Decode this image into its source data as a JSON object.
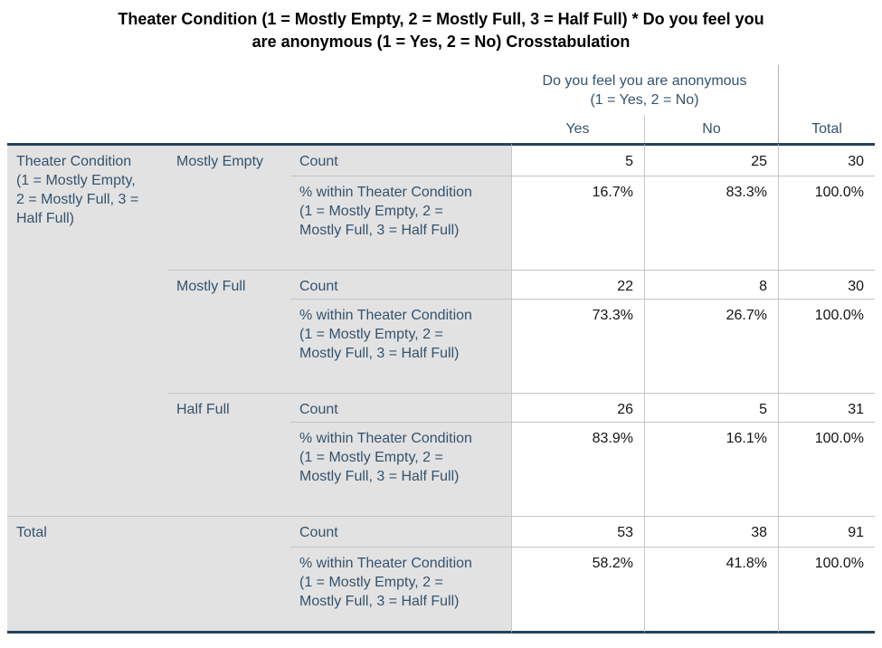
{
  "title": {
    "line1": "Theater Condition (1 = Mostly Empty, 2 = Mostly Full, 3 = Half Full) * Do you feel you",
    "line2": "are anonymous (1 = Yes, 2 = No) Crosstabulation"
  },
  "table": {
    "column_group_header": "Do you feel you are anonymous (1 = Yes, 2 = No)",
    "column_headers": {
      "yes": "Yes",
      "no": "No",
      "total": "Total"
    },
    "row_variable_label": "Theater Condition (1 = Mostly Empty, 2 = Mostly Full, 3 = Half Full)",
    "stat_labels": {
      "count": "Count",
      "pct_within": "% within Theater Condition (1 = Mostly Empty, 2 = Mostly Full, 3 = Half Full)"
    },
    "rows": [
      {
        "category": "Mostly Empty",
        "count": {
          "yes": "5",
          "no": "25",
          "total": "30"
        },
        "pct": {
          "yes": "16.7%",
          "no": "83.3%",
          "total": "100.0%"
        }
      },
      {
        "category": "Mostly Full",
        "count": {
          "yes": "22",
          "no": "8",
          "total": "30"
        },
        "pct": {
          "yes": "73.3%",
          "no": "26.7%",
          "total": "100.0%"
        }
      },
      {
        "category": "Half Full",
        "count": {
          "yes": "26",
          "no": "5",
          "total": "31"
        },
        "pct": {
          "yes": "83.9%",
          "no": "16.1%",
          "total": "100.0%"
        }
      }
    ],
    "total_row": {
      "category": "Total",
      "count": {
        "yes": "53",
        "no": "38",
        "total": "91"
      },
      "pct": {
        "yes": "58.2%",
        "no": "41.8%",
        "total": "100.0%"
      }
    }
  },
  "colors": {
    "label_text": "#34536e",
    "value_text": "#141414",
    "label_bg": "#e2e2e2",
    "thick_border": "#25425c",
    "grid_line": "#c4c4c4"
  }
}
